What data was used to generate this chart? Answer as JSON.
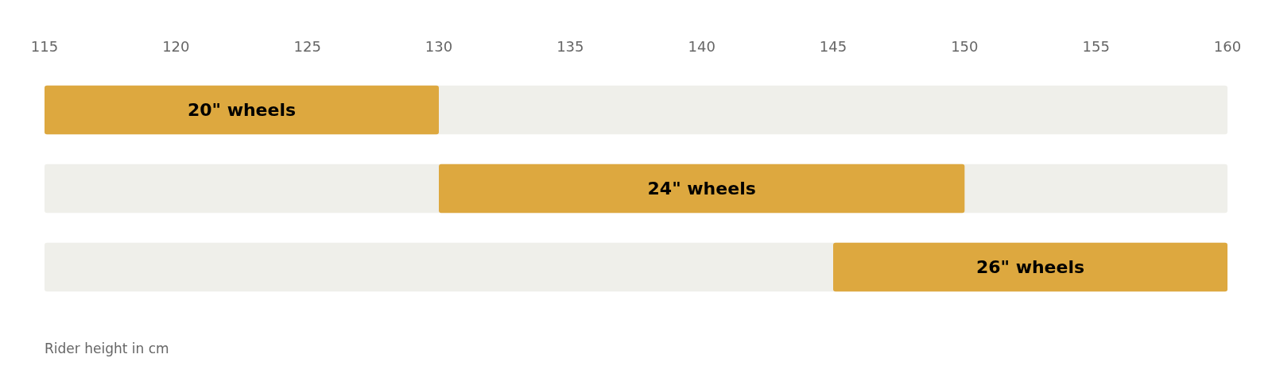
{
  "chart_data": {
    "type": "bar",
    "orientation": "horizontal",
    "xlabel": "Rider height in cm",
    "categories": [
      "20\" wheels",
      "24\" wheels",
      "26\" wheels"
    ],
    "base": [
      115,
      130,
      145
    ],
    "values": [
      15,
      20,
      15
    ],
    "color": "#dda83f",
    "xlim": [
      115,
      160
    ],
    "xticks": [
      115,
      120,
      125,
      130,
      135,
      140,
      145,
      150,
      155,
      160
    ],
    "tick_labels": "x",
    "grid": false
  }
}
